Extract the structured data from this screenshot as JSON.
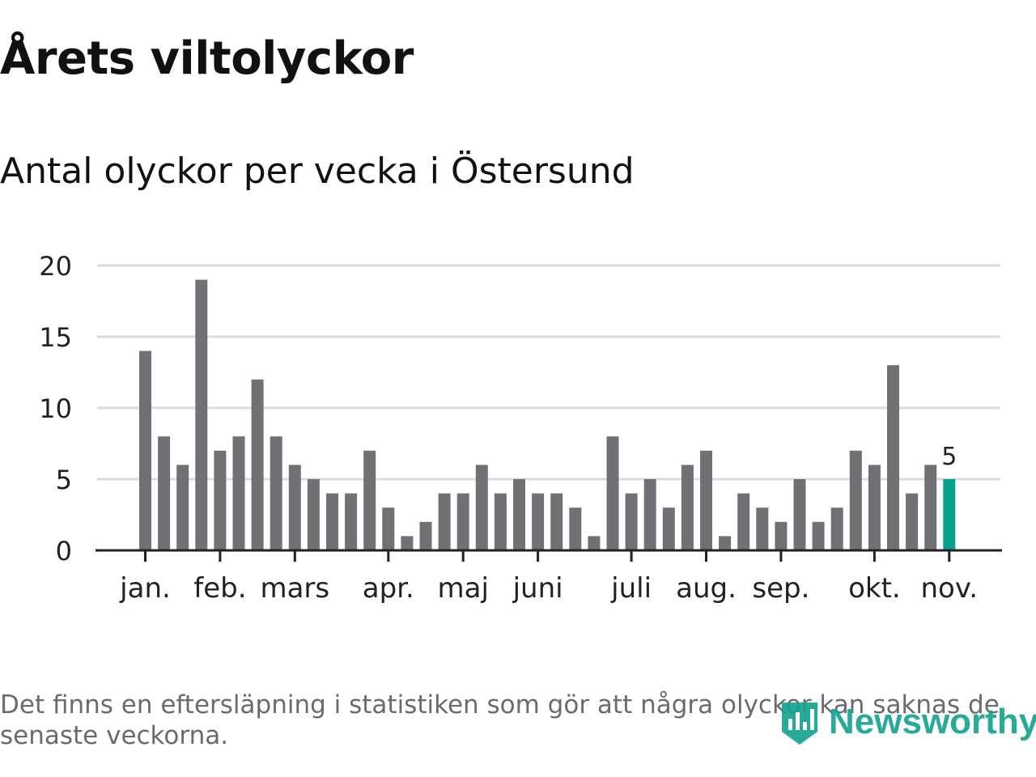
{
  "title": "Årets viltolyckor",
  "subtitle": "Antal olyckor per vecka i Östersund",
  "footnote": "Det finns en eftersläpning i statistiken som gör att några olyckor kan saknas de senaste veckorna.",
  "logo": {
    "text": "Newsworthy",
    "icon": "newsworthy-logo-icon"
  },
  "colors": {
    "bar": "#717075",
    "highlight": "#08a190",
    "grid": "#dddddd",
    "axis": "#222222",
    "text": "#222222"
  },
  "chart_data": {
    "type": "bar",
    "title": "Årets viltolyckor",
    "subtitle": "Antal olyckor per vecka i Östersund",
    "xlabel": "",
    "ylabel": "",
    "ylim": [
      0,
      20
    ],
    "yticks": [
      "0",
      "5",
      "10",
      "15",
      "20"
    ],
    "values": [
      14,
      8,
      6,
      19,
      7,
      8,
      12,
      8,
      6,
      5,
      4,
      4,
      7,
      3,
      1,
      2,
      4,
      4,
      6,
      4,
      5,
      4,
      4,
      3,
      1,
      8,
      4,
      5,
      3,
      6,
      7,
      1,
      4,
      3,
      2,
      5,
      2,
      3,
      7,
      6,
      13,
      4,
      6,
      5
    ],
    "highlight_index": 43,
    "highlight_label": "5",
    "month_labels": [
      {
        "label": "jan.",
        "week_index": 0
      },
      {
        "label": "feb.",
        "week_index": 4
      },
      {
        "label": "mars",
        "week_index": 8
      },
      {
        "label": "apr.",
        "week_index": 13
      },
      {
        "label": "maj",
        "week_index": 17
      },
      {
        "label": "juni",
        "week_index": 21
      },
      {
        "label": "juli",
        "week_index": 26
      },
      {
        "label": "aug.",
        "week_index": 30
      },
      {
        "label": "sep.",
        "week_index": 34
      },
      {
        "label": "okt.",
        "week_index": 39
      },
      {
        "label": "nov.",
        "week_index": 43
      }
    ]
  }
}
